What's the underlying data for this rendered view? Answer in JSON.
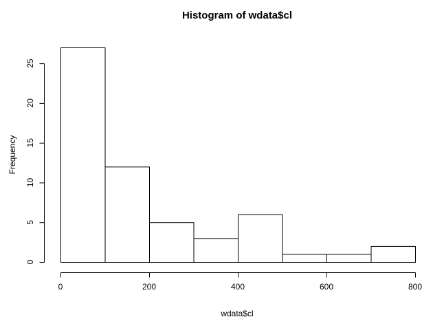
{
  "chart_data": {
    "type": "bar",
    "title": "Histogram of wdata$cl",
    "xlabel": "wdata$cl",
    "ylabel": "Frequency",
    "bins": [
      {
        "from": 0,
        "to": 100,
        "count": 27
      },
      {
        "from": 100,
        "to": 200,
        "count": 12
      },
      {
        "from": 200,
        "to": 300,
        "count": 5
      },
      {
        "from": 300,
        "to": 400,
        "count": 3
      },
      {
        "from": 400,
        "to": 500,
        "count": 6
      },
      {
        "from": 500,
        "to": 600,
        "count": 1
      },
      {
        "from": 600,
        "to": 700,
        "count": 1
      },
      {
        "from": 700,
        "to": 800,
        "count": 2
      }
    ],
    "xlim": [
      0,
      800
    ],
    "ylim": [
      0,
      27
    ],
    "xticks": [
      0,
      200,
      400,
      600,
      800
    ],
    "yticks": [
      0,
      5,
      10,
      15,
      20,
      25
    ],
    "grid": false,
    "colors": {
      "bar_fill": "#ffffff",
      "bar_stroke": "#000000",
      "background": "#ffffff"
    }
  }
}
